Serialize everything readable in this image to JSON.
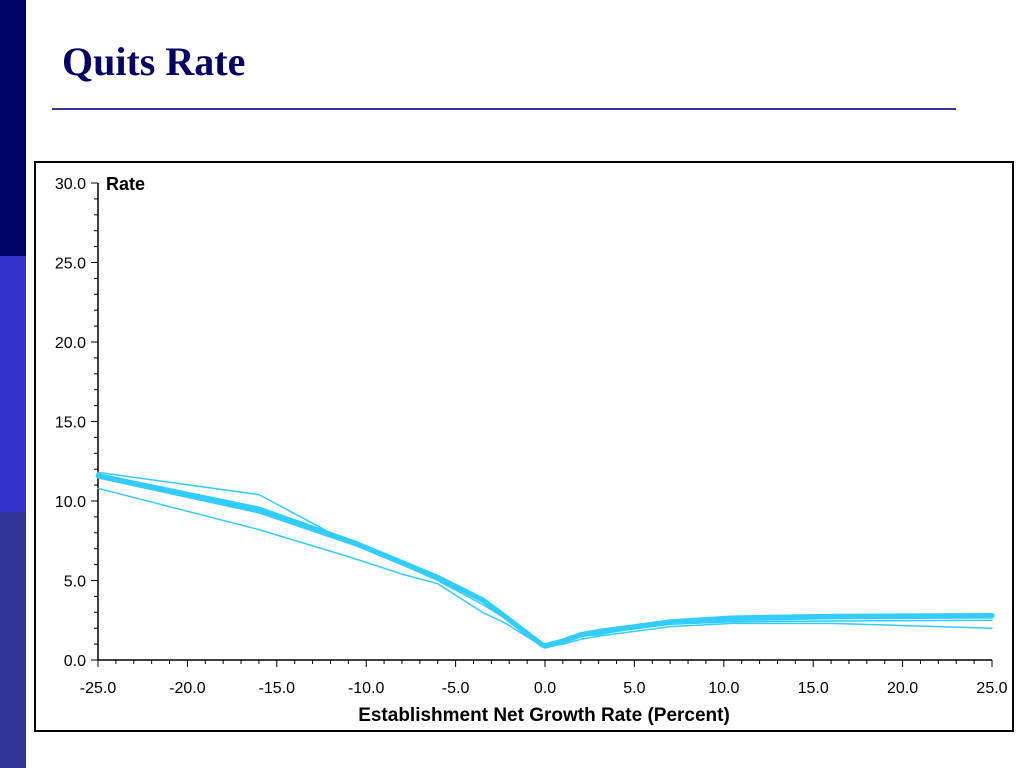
{
  "slide": {
    "title": "Quits Rate"
  },
  "chart_data": {
    "type": "line",
    "title": "",
    "ylabel": "Rate",
    "xlabel": "Establishment Net Growth Rate (Percent)",
    "xlim": [
      -25,
      25
    ],
    "ylim": [
      0,
      30
    ],
    "x_ticks": [
      "-25.0",
      "-20.0",
      "-15.0",
      "-10.0",
      "-5.0",
      "0.0",
      "5.0",
      "10.0",
      "15.0",
      "20.0",
      "25.0"
    ],
    "y_ticks": [
      "0.0",
      "5.0",
      "10.0",
      "15.0",
      "20.0",
      "25.0",
      "30.0"
    ],
    "grid": false,
    "legend": "none",
    "line_color": "#33ccff",
    "series": [
      {
        "x": [
          -25,
          -16,
          -10.5,
          -6,
          -3.5,
          -2.3,
          -0.2,
          0,
          1,
          2,
          3,
          5,
          7,
          10.5,
          16,
          25
        ],
        "y": [
          11.6,
          9.5,
          7.3,
          5.2,
          3.8,
          2.8,
          1.0,
          0.9,
          1.2,
          1.6,
          1.8,
          2.1,
          2.4,
          2.65,
          2.75,
          2.8
        ],
        "width": 5
      },
      {
        "x": [
          -25,
          -16,
          -10.5,
          -6,
          -3.5,
          -2.3,
          -0.2,
          0,
          1,
          2,
          3,
          5,
          7,
          10.5,
          16,
          25
        ],
        "y": [
          11.5,
          9.3,
          7.2,
          5.1,
          3.7,
          2.7,
          0.9,
          0.8,
          1.1,
          1.5,
          1.7,
          2.0,
          2.3,
          2.55,
          2.65,
          2.7
        ],
        "width": 3
      },
      {
        "x": [
          -25,
          -16,
          -12,
          -10,
          -6,
          -3.5,
          -2.2,
          -0.2,
          0,
          1,
          2,
          3,
          5,
          7,
          10.5,
          16,
          25
        ],
        "y": [
          11.8,
          10.4,
          8.0,
          7.0,
          5.0,
          3.5,
          2.6,
          0.9,
          0.8,
          1.1,
          1.5,
          1.6,
          2.0,
          2.25,
          2.4,
          2.45,
          2.5
        ],
        "width": 1.5
      },
      {
        "x": [
          -25,
          -16,
          -11,
          -8,
          -6,
          -3.5,
          -2.2,
          -0.2,
          0,
          1,
          2,
          3,
          5,
          7,
          10.5,
          16,
          25
        ],
        "y": [
          10.8,
          8.2,
          6.5,
          5.4,
          4.8,
          3.0,
          2.3,
          0.9,
          0.8,
          1.0,
          1.3,
          1.5,
          1.8,
          2.1,
          2.3,
          2.3,
          2.0
        ],
        "width": 1.5
      }
    ]
  }
}
